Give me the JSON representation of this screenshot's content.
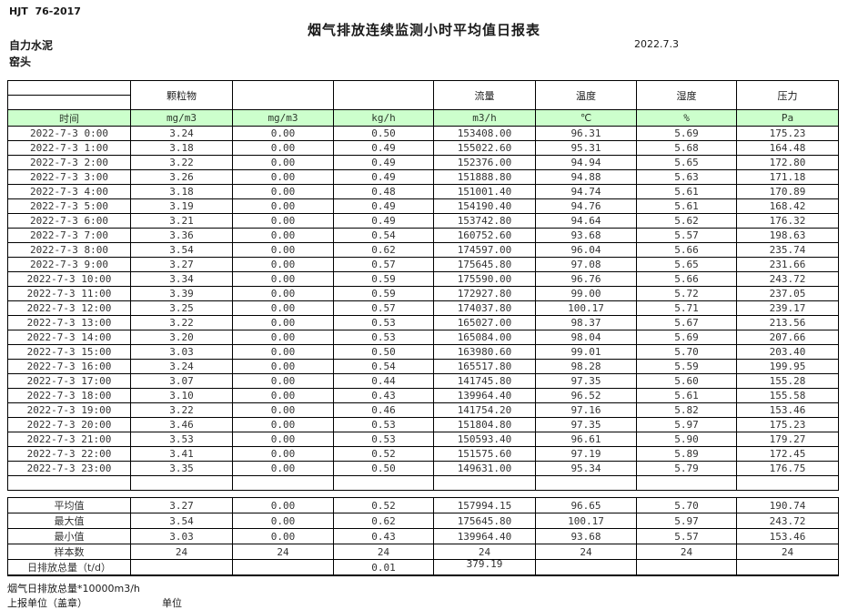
{
  "header": {
    "standard_no": "HJT  76-2017",
    "title": "烟气排放连续监测小时平均值日报表",
    "company": "自力水泥",
    "location": "窑头",
    "date": "2022.7.3"
  },
  "colors": {
    "unit_row_fill": "#ccffcc",
    "border": "#000000"
  },
  "table": {
    "pollutant_headers": [
      "",
      "颗粒物",
      "",
      "",
      "流量",
      "温度",
      "湿度",
      "压力"
    ],
    "unit_row": [
      "时间",
      "mg/m3",
      "mg/m3",
      "kg/h",
      "m3/h",
      "℃",
      "%",
      "Pa"
    ],
    "rows": [
      [
        "2022-7-3 0:00",
        "3.24",
        "0.00",
        "0.50",
        "153408.00",
        "96.31",
        "5.69",
        "175.23"
      ],
      [
        "2022-7-3 1:00",
        "3.18",
        "0.00",
        "0.49",
        "155022.60",
        "95.31",
        "5.68",
        "164.48"
      ],
      [
        "2022-7-3 2:00",
        "3.22",
        "0.00",
        "0.49",
        "152376.00",
        "94.94",
        "5.65",
        "172.80"
      ],
      [
        "2022-7-3 3:00",
        "3.26",
        "0.00",
        "0.49",
        "151888.80",
        "94.88",
        "5.63",
        "171.18"
      ],
      [
        "2022-7-3 4:00",
        "3.18",
        "0.00",
        "0.48",
        "151001.40",
        "94.74",
        "5.61",
        "170.89"
      ],
      [
        "2022-7-3 5:00",
        "3.19",
        "0.00",
        "0.49",
        "154190.40",
        "94.76",
        "5.61",
        "168.42"
      ],
      [
        "2022-7-3 6:00",
        "3.21",
        "0.00",
        "0.49",
        "153742.80",
        "94.64",
        "5.62",
        "176.32"
      ],
      [
        "2022-7-3 7:00",
        "3.36",
        "0.00",
        "0.54",
        "160752.60",
        "93.68",
        "5.57",
        "198.63"
      ],
      [
        "2022-7-3 8:00",
        "3.54",
        "0.00",
        "0.62",
        "174597.00",
        "96.04",
        "5.66",
        "235.74"
      ],
      [
        "2022-7-3 9:00",
        "3.27",
        "0.00",
        "0.57",
        "175645.80",
        "97.08",
        "5.65",
        "231.66"
      ],
      [
        "2022-7-3 10:00",
        "3.34",
        "0.00",
        "0.59",
        "175590.00",
        "96.76",
        "5.66",
        "243.72"
      ],
      [
        "2022-7-3 11:00",
        "3.39",
        "0.00",
        "0.59",
        "172927.80",
        "99.00",
        "5.72",
        "237.05"
      ],
      [
        "2022-7-3 12:00",
        "3.25",
        "0.00",
        "0.57",
        "174037.80",
        "100.17",
        "5.71",
        "239.17"
      ],
      [
        "2022-7-3 13:00",
        "3.22",
        "0.00",
        "0.53",
        "165027.00",
        "98.37",
        "5.67",
        "213.56"
      ],
      [
        "2022-7-3 14:00",
        "3.20",
        "0.00",
        "0.53",
        "165084.00",
        "98.04",
        "5.69",
        "207.66"
      ],
      [
        "2022-7-3 15:00",
        "3.03",
        "0.00",
        "0.50",
        "163980.60",
        "99.01",
        "5.70",
        "203.40"
      ],
      [
        "2022-7-3 16:00",
        "3.24",
        "0.00",
        "0.54",
        "165517.80",
        "98.28",
        "5.59",
        "199.95"
      ],
      [
        "2022-7-3 17:00",
        "3.07",
        "0.00",
        "0.44",
        "141745.80",
        "97.35",
        "5.60",
        "155.28"
      ],
      [
        "2022-7-3 18:00",
        "3.10",
        "0.00",
        "0.43",
        "139964.40",
        "96.52",
        "5.61",
        "155.58"
      ],
      [
        "2022-7-3 19:00",
        "3.22",
        "0.00",
        "0.46",
        "141754.20",
        "97.16",
        "5.82",
        "153.46"
      ],
      [
        "2022-7-3 20:00",
        "3.46",
        "0.00",
        "0.53",
        "151804.80",
        "97.35",
        "5.97",
        "175.23"
      ],
      [
        "2022-7-3 21:00",
        "3.53",
        "0.00",
        "0.53",
        "150593.40",
        "96.61",
        "5.90",
        "179.27"
      ],
      [
        "2022-7-3 22:00",
        "3.41",
        "0.00",
        "0.52",
        "151575.60",
        "97.19",
        "5.89",
        "172.45"
      ],
      [
        "2022-7-3 23:00",
        "3.35",
        "0.00",
        "0.50",
        "149631.00",
        "95.34",
        "5.79",
        "176.75"
      ]
    ],
    "summary_rows": [
      [
        "平均值",
        "3.27",
        "0.00",
        "0.52",
        "157994.15",
        "96.65",
        "5.70",
        "190.74"
      ],
      [
        "最大值",
        "3.54",
        "0.00",
        "0.62",
        "175645.80",
        "100.17",
        "5.97",
        "243.72"
      ],
      [
        "最小值",
        "3.03",
        "0.00",
        "0.43",
        "139964.40",
        "93.68",
        "5.57",
        "153.46"
      ],
      [
        "样本数",
        "24",
        "24",
        "24",
        "24",
        "24",
        "24",
        "24"
      ],
      [
        "日排放总量（t/d）",
        "",
        "",
        "0.01",
        "379.19",
        "",
        "",
        ""
      ]
    ]
  },
  "footer": {
    "note": "烟气日排放总量*10000m3/h",
    "report_unit_label": "上报单位（盖章）",
    "unit_label": "单位"
  }
}
